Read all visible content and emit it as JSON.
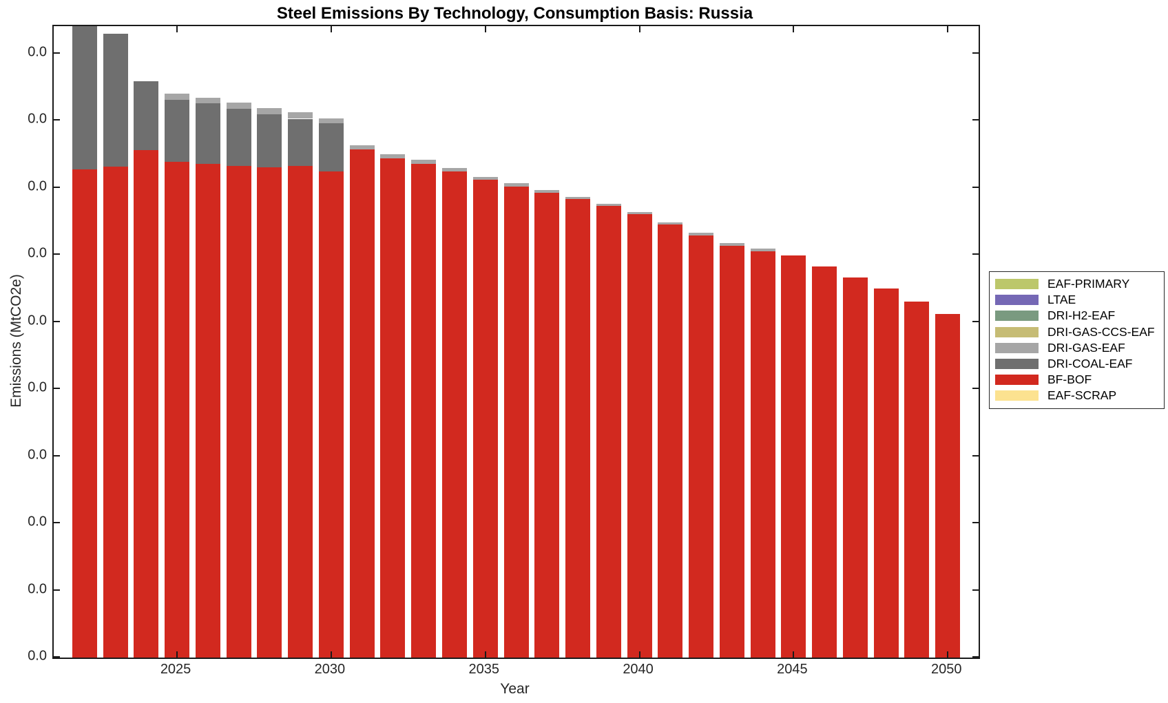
{
  "chart_data": {
    "type": "bar",
    "stacked": true,
    "title": "Steel Emissions By Technology, Consumption Basis: Russia",
    "xlabel": "Year",
    "ylabel": "Emissions (MtCO2e)",
    "x": [
      2022,
      2023,
      2024,
      2025,
      2026,
      2027,
      2028,
      2029,
      2030,
      2031,
      2032,
      2033,
      2034,
      2035,
      2036,
      2037,
      2038,
      2039,
      2040,
      2041,
      2042,
      2043,
      2044,
      2045,
      2046,
      2047,
      2048,
      2049,
      2050
    ],
    "xticks": [
      2025,
      2030,
      2035,
      2040,
      2045,
      2050
    ],
    "xlim": [
      2021,
      2051
    ],
    "ytick_labels": [
      "0.0",
      "0.0",
      "0.0",
      "0.0",
      "0.0",
      "0.0",
      "0.0",
      "0.0",
      "0.0",
      "0.0"
    ],
    "ylim_units": [
      0,
      9.41
    ],
    "units_note": "All y tick labels render as 0.0; values below are in y-axis tick intervals (1.0 = one gridline spacing), estimated from bar pixel heights. 2022 bar is clipped by the top of the axes.",
    "grid": false,
    "legend_position": "right-outside",
    "series": [
      {
        "name": "EAF-PRIMARY",
        "color": "#bcc76b",
        "values": [
          0,
          0,
          0,
          0,
          0,
          0,
          0,
          0,
          0,
          0,
          0,
          0,
          0,
          0,
          0,
          0,
          0,
          0,
          0,
          0,
          0,
          0,
          0,
          0,
          0,
          0,
          0,
          0,
          0
        ]
      },
      {
        "name": "LTAE",
        "color": "#7568b5",
        "values": [
          0,
          0,
          0,
          0,
          0,
          0,
          0,
          0,
          0,
          0,
          0,
          0,
          0,
          0,
          0,
          0,
          0,
          0,
          0,
          0,
          0,
          0,
          0,
          0,
          0,
          0,
          0,
          0,
          0
        ]
      },
      {
        "name": "DRI-H2-EAF",
        "color": "#7a9a80",
        "values": [
          0,
          0,
          0,
          0,
          0,
          0,
          0,
          0,
          0,
          0,
          0,
          0,
          0,
          0,
          0,
          0,
          0,
          0,
          0,
          0,
          0,
          0,
          0,
          0,
          0,
          0,
          0,
          0,
          0
        ]
      },
      {
        "name": "DRI-GAS-CCS-EAF",
        "color": "#c6bc75",
        "values": [
          0,
          0,
          0,
          0,
          0,
          0,
          0,
          0,
          0,
          0,
          0,
          0,
          0,
          0,
          0,
          0,
          0,
          0,
          0,
          0,
          0,
          0,
          0,
          0,
          0,
          0,
          0,
          0,
          0
        ]
      },
      {
        "name": "DRI-GAS-EAF",
        "color": "#a6a6a6",
        "values": [
          0,
          0,
          0,
          0.09,
          0.08,
          0.09,
          0.09,
          0.1,
          0.08,
          0.06,
          0.06,
          0.06,
          0.05,
          0.04,
          0.05,
          0.04,
          0.04,
          0.03,
          0.03,
          0.04,
          0.04,
          0.04,
          0.05,
          0,
          0,
          0,
          0,
          0,
          0
        ]
      },
      {
        "name": "DRI-COAL-EAF",
        "color": "#6f6f6f",
        "values": [
          2.45,
          1.98,
          1.03,
          0.92,
          0.9,
          0.85,
          0.79,
          0.7,
          0.71,
          0,
          0,
          0,
          0,
          0,
          0,
          0,
          0,
          0,
          0,
          0,
          0,
          0,
          0,
          0,
          0,
          0,
          0,
          0,
          0
        ]
      },
      {
        "name": "BF-BOF",
        "color": "#d2291f",
        "values": [
          7.28,
          7.32,
          7.56,
          7.39,
          7.36,
          7.33,
          7.31,
          7.33,
          7.25,
          7.57,
          7.44,
          7.36,
          7.25,
          7.12,
          7.02,
          6.93,
          6.83,
          6.73,
          6.61,
          6.45,
          6.29,
          6.14,
          6.05,
          5.99,
          5.83,
          5.66,
          5.5,
          5.31,
          5.12
        ]
      },
      {
        "name": "EAF-SCRAP",
        "color": "#fce290",
        "values": [
          0,
          0,
          0,
          0,
          0,
          0,
          0,
          0,
          0,
          0,
          0,
          0,
          0,
          0,
          0,
          0,
          0,
          0,
          0,
          0,
          0,
          0,
          0,
          0,
          0,
          0,
          0,
          0,
          0
        ]
      }
    ],
    "stack_order_bottom_to_top": [
      "EAF-SCRAP",
      "BF-BOF",
      "DRI-COAL-EAF",
      "DRI-GAS-EAF",
      "DRI-GAS-CCS-EAF",
      "DRI-H2-EAF",
      "LTAE",
      "EAF-PRIMARY"
    ],
    "style": {
      "axis_color": "#1a1a1a",
      "text_color": "#262626",
      "background": "#ffffff"
    }
  }
}
